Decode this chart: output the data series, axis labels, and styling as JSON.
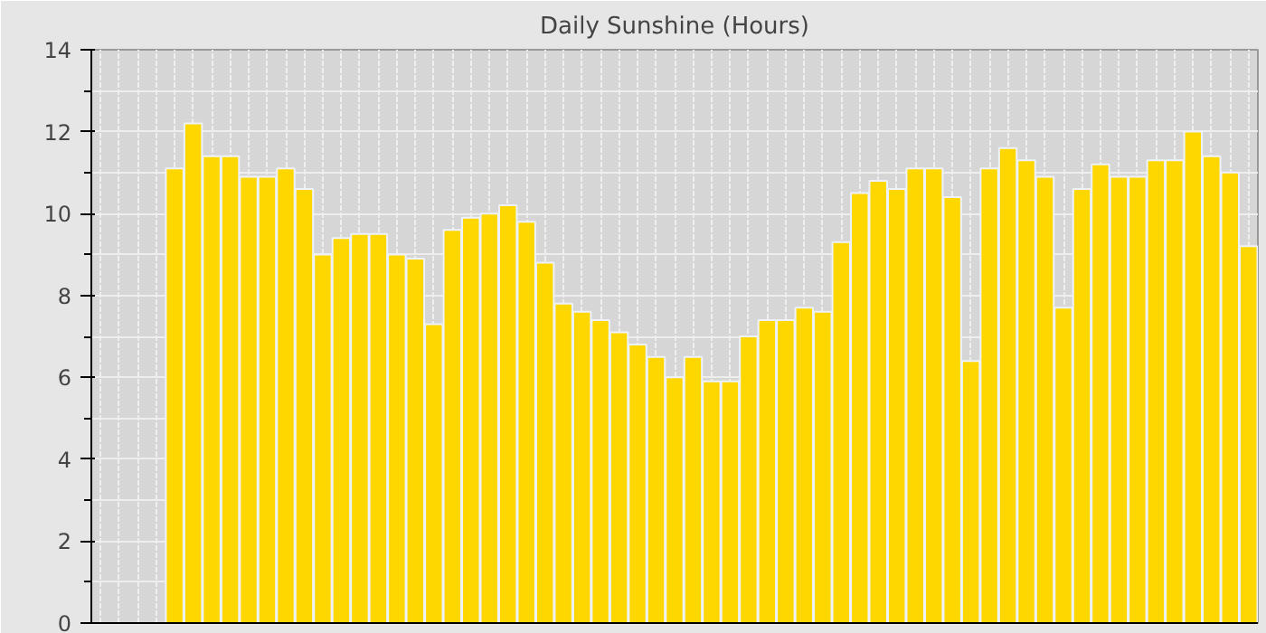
{
  "chart_data": {
    "type": "bar",
    "title": "Daily Sunshine (Hours)",
    "categories": [
      null,
      null,
      null,
      null,
      null,
      null,
      null,
      null,
      null,
      null,
      null,
      null,
      null,
      null,
      null,
      null,
      null,
      null,
      null,
      null,
      null,
      null,
      null,
      null,
      null,
      null,
      null,
      null,
      null,
      null,
      null,
      null,
      null,
      null,
      null,
      null,
      null,
      null,
      null,
      null,
      null,
      null,
      null,
      null,
      null,
      null,
      null,
      null,
      null,
      null,
      null,
      null,
      null,
      null,
      null,
      null,
      null,
      null,
      null,
      null,
      null,
      null,
      null
    ],
    "values": [
      null,
      null,
      null,
      null,
      11.1,
      12.2,
      11.4,
      11.4,
      10.9,
      10.9,
      11.1,
      10.6,
      9.0,
      9.4,
      9.5,
      9.5,
      9.0,
      8.9,
      7.3,
      9.6,
      9.9,
      10.0,
      10.2,
      9.8,
      8.8,
      7.8,
      7.6,
      7.4,
      7.1,
      6.8,
      6.5,
      6.0,
      6.5,
      5.9,
      5.9,
      7.0,
      7.4,
      7.4,
      7.7,
      7.6,
      9.3,
      10.5,
      10.8,
      10.6,
      11.1,
      11.1,
      10.4,
      6.4,
      11.1,
      11.6,
      11.3,
      10.9,
      7.7,
      10.6,
      11.2,
      10.9,
      10.9,
      11.3,
      11.3,
      12.0,
      11.4,
      11.0,
      9.2
    ],
    "color": "#ffd700",
    "ylim": [
      0,
      14
    ],
    "yticks": [
      0,
      2,
      4,
      6,
      8,
      10,
      12,
      14
    ],
    "grid": true
  }
}
